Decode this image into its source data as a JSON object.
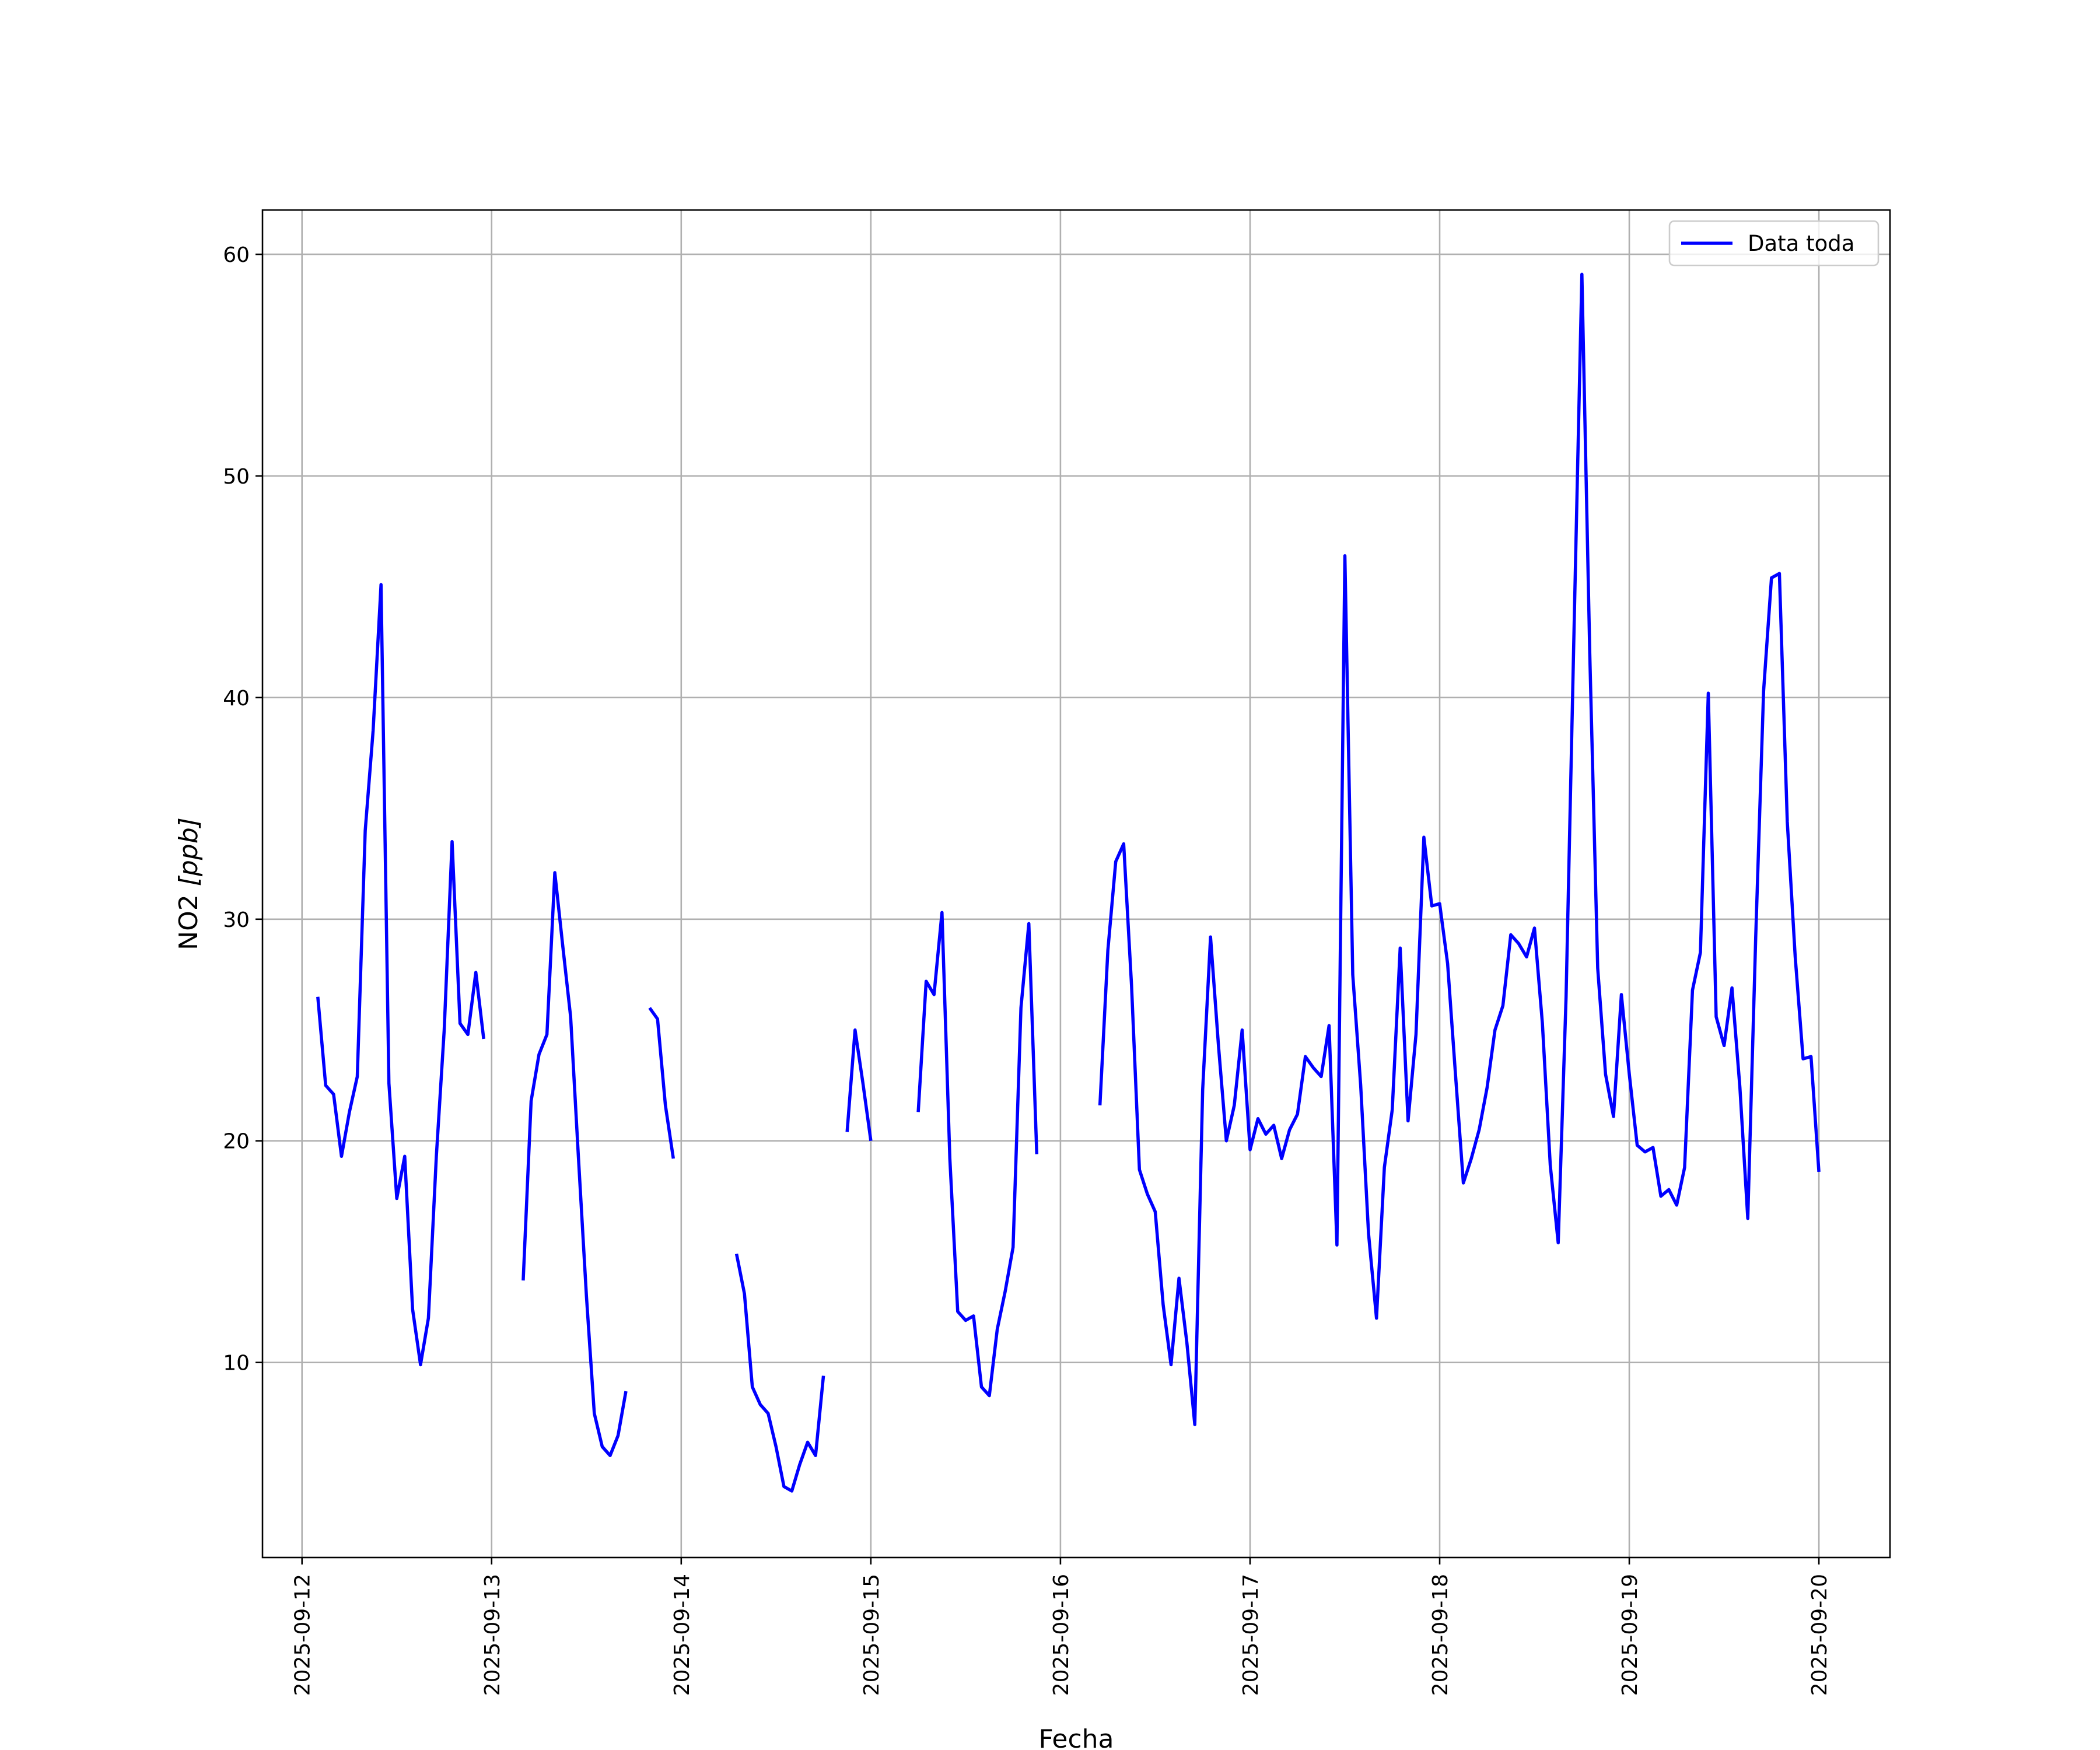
{
  "chart_data": {
    "type": "line",
    "xlabel": "Fecha",
    "ylabel": "NO2 [ppb]",
    "ylabel_main": "NO2 ",
    "ylabel_unit": "[ppb]",
    "x_tick_labels": [
      "2025-09-12",
      "2025-09-13",
      "2025-09-14",
      "2025-09-15",
      "2025-09-16",
      "2025-09-17",
      "2025-09-18",
      "2025-09-19",
      "2025-09-20"
    ],
    "y_ticks": [
      "10",
      "20",
      "30",
      "40",
      "50",
      "60"
    ],
    "xlim": [
      "2025-09-11T19:00",
      "2025-09-20T09:00"
    ],
    "ylim": [
      1.2,
      62.0
    ],
    "grid": true,
    "legend_position": "top-right",
    "series": [
      {
        "name": "Data toda",
        "color": "#0000ff",
        "segments": [
          [
            [
              "2025-09-12T02:00",
              26.5
            ],
            [
              "2025-09-12T03:00",
              22.5
            ],
            [
              "2025-09-12T04:00",
              22.1
            ],
            [
              "2025-09-12T05:00",
              19.3
            ],
            [
              "2025-09-12T06:00",
              21.3
            ],
            [
              "2025-09-12T07:00",
              22.9
            ],
            [
              "2025-09-12T08:00",
              34.0
            ],
            [
              "2025-09-12T09:00",
              38.5
            ],
            [
              "2025-09-12T10:00",
              45.1
            ],
            [
              "2025-09-12T11:00",
              22.6
            ],
            [
              "2025-09-12T12:00",
              17.4
            ],
            [
              "2025-09-12T13:00",
              19.3
            ],
            [
              "2025-09-12T14:00",
              12.4
            ],
            [
              "2025-09-12T15:00",
              9.9
            ],
            [
              "2025-09-12T16:00",
              12.0
            ],
            [
              "2025-09-12T17:00",
              19.3
            ],
            [
              "2025-09-12T18:00",
              25.0
            ],
            [
              "2025-09-12T19:00",
              33.5
            ],
            [
              "2025-09-12T20:00",
              25.3
            ],
            [
              "2025-09-12T21:00",
              24.8
            ],
            [
              "2025-09-12T22:00",
              27.6
            ],
            [
              "2025-09-12T23:00",
              24.6
            ]
          ],
          [
            [
              "2025-09-13T04:00",
              13.7
            ],
            [
              "2025-09-13T05:00",
              21.8
            ],
            [
              "2025-09-13T06:00",
              23.9
            ],
            [
              "2025-09-13T07:00",
              24.8
            ],
            [
              "2025-09-13T08:00",
              32.1
            ],
            [
              "2025-09-13T09:00",
              28.8
            ],
            [
              "2025-09-13T10:00",
              25.6
            ],
            [
              "2025-09-13T11:00",
              19.2
            ],
            [
              "2025-09-13T12:00",
              13.0
            ],
            [
              "2025-09-13T13:00",
              7.7
            ],
            [
              "2025-09-13T14:00",
              6.2
            ],
            [
              "2025-09-13T15:00",
              5.8
            ],
            [
              "2025-09-13T16:00",
              6.7
            ],
            [
              "2025-09-13T17:00",
              8.7
            ]
          ],
          [
            [
              "2025-09-13T20:00",
              26.0
            ],
            [
              "2025-09-13T21:00",
              25.5
            ],
            [
              "2025-09-13T22:00",
              21.6
            ],
            [
              "2025-09-13T23:00",
              19.2
            ]
          ],
          [
            [
              "2025-09-14T07:00",
              14.9
            ],
            [
              "2025-09-14T08:00",
              13.1
            ],
            [
              "2025-09-14T09:00",
              8.9
            ],
            [
              "2025-09-14T10:00",
              8.1
            ],
            [
              "2025-09-14T11:00",
              7.7
            ],
            [
              "2025-09-14T12:00",
              6.2
            ],
            [
              "2025-09-14T13:00",
              4.4
            ],
            [
              "2025-09-14T14:00",
              4.2
            ],
            [
              "2025-09-14T15:00",
              5.4
            ],
            [
              "2025-09-14T16:00",
              6.4
            ],
            [
              "2025-09-14T17:00",
              5.8
            ],
            [
              "2025-09-14T18:00",
              9.4
            ]
          ],
          [
            [
              "2025-09-14T21:00",
              20.4
            ],
            [
              "2025-09-14T22:00",
              25.0
            ],
            [
              "2025-09-14T23:00",
              22.6
            ],
            [
              "2025-09-15T00:00",
              20.0
            ]
          ],
          [
            [
              "2025-09-15T06:00",
              21.3
            ],
            [
              "2025-09-15T07:00",
              27.2
            ],
            [
              "2025-09-15T08:00",
              26.6
            ],
            [
              "2025-09-15T09:00",
              30.3
            ],
            [
              "2025-09-15T10:00",
              19.2
            ],
            [
              "2025-09-15T11:00",
              12.3
            ],
            [
              "2025-09-15T12:00",
              11.9
            ],
            [
              "2025-09-15T13:00",
              12.1
            ],
            [
              "2025-09-15T14:00",
              8.9
            ],
            [
              "2025-09-15T15:00",
              8.5
            ],
            [
              "2025-09-15T16:00",
              11.5
            ],
            [
              "2025-09-15T17:00",
              13.2
            ],
            [
              "2025-09-15T18:00",
              15.2
            ],
            [
              "2025-09-15T19:00",
              26.0
            ],
            [
              "2025-09-15T20:00",
              29.8
            ],
            [
              "2025-09-15T21:00",
              19.4
            ]
          ],
          [
            [
              "2025-09-16T05:00",
              21.6
            ],
            [
              "2025-09-16T06:00",
              28.6
            ],
            [
              "2025-09-16T07:00",
              32.6
            ],
            [
              "2025-09-16T08:00",
              33.4
            ],
            [
              "2025-09-16T09:00",
              27.0
            ],
            [
              "2025-09-16T10:00",
              18.7
            ],
            [
              "2025-09-16T11:00",
              17.6
            ],
            [
              "2025-09-16T12:00",
              16.8
            ],
            [
              "2025-09-16T13:00",
              12.6
            ],
            [
              "2025-09-16T14:00",
              9.9
            ],
            [
              "2025-09-16T15:00",
              13.8
            ],
            [
              "2025-09-16T16:00",
              10.9
            ],
            [
              "2025-09-16T17:00",
              7.2
            ],
            [
              "2025-09-16T18:00",
              22.3
            ],
            [
              "2025-09-16T19:00",
              29.2
            ],
            [
              "2025-09-16T20:00",
              24.3
            ],
            [
              "2025-09-16T21:00",
              20.0
            ],
            [
              "2025-09-16T22:00",
              21.6
            ],
            [
              "2025-09-16T23:00",
              25.0
            ],
            [
              "2025-09-17T00:00",
              19.6
            ],
            [
              "2025-09-17T01:00",
              21.0
            ],
            [
              "2025-09-17T02:00",
              20.3
            ],
            [
              "2025-09-17T03:00",
              20.7
            ],
            [
              "2025-09-17T04:00",
              19.2
            ],
            [
              "2025-09-17T05:00",
              20.5
            ],
            [
              "2025-09-17T06:00",
              21.2
            ],
            [
              "2025-09-17T07:00",
              23.8
            ],
            [
              "2025-09-17T08:00",
              23.3
            ],
            [
              "2025-09-17T09:00",
              22.9
            ],
            [
              "2025-09-17T10:00",
              25.2
            ],
            [
              "2025-09-17T11:00",
              15.3
            ],
            [
              "2025-09-17T12:00",
              46.4
            ],
            [
              "2025-09-17T13:00",
              27.5
            ],
            [
              "2025-09-17T14:00",
              22.5
            ],
            [
              "2025-09-17T15:00",
              15.8
            ],
            [
              "2025-09-17T16:00",
              12.0
            ],
            [
              "2025-09-17T17:00",
              18.8
            ],
            [
              "2025-09-17T18:00",
              21.4
            ],
            [
              "2025-09-17T19:00",
              28.7
            ],
            [
              "2025-09-17T20:00",
              20.9
            ],
            [
              "2025-09-17T21:00",
              24.8
            ],
            [
              "2025-09-17T22:00",
              33.7
            ],
            [
              "2025-09-17T23:00",
              30.6
            ],
            [
              "2025-09-18T00:00",
              30.7
            ],
            [
              "2025-09-18T01:00",
              28.0
            ],
            [
              "2025-09-18T02:00",
              23.0
            ],
            [
              "2025-09-18T03:00",
              18.1
            ],
            [
              "2025-09-18T04:00",
              19.2
            ],
            [
              "2025-09-18T05:00",
              20.5
            ],
            [
              "2025-09-18T06:00",
              22.4
            ],
            [
              "2025-09-18T07:00",
              25.0
            ],
            [
              "2025-09-18T08:00",
              26.1
            ],
            [
              "2025-09-18T09:00",
              29.3
            ],
            [
              "2025-09-18T10:00",
              28.9
            ],
            [
              "2025-09-18T11:00",
              28.3
            ],
            [
              "2025-09-18T12:00",
              29.6
            ],
            [
              "2025-09-18T13:00",
              25.3
            ],
            [
              "2025-09-18T14:00",
              18.9
            ],
            [
              "2025-09-18T15:00",
              15.4
            ],
            [
              "2025-09-18T16:00",
              26.5
            ],
            [
              "2025-09-18T17:00",
              43.0
            ],
            [
              "2025-09-18T18:00",
              59.1
            ],
            [
              "2025-09-18T19:00",
              42.0
            ],
            [
              "2025-09-18T20:00",
              27.8
            ],
            [
              "2025-09-18T21:00",
              23.0
            ],
            [
              "2025-09-18T22:00",
              21.1
            ],
            [
              "2025-09-18T23:00",
              26.6
            ],
            [
              "2025-09-19T00:00",
              23.0
            ],
            [
              "2025-09-19T01:00",
              19.8
            ],
            [
              "2025-09-19T02:00",
              19.5
            ],
            [
              "2025-09-19T03:00",
              19.7
            ],
            [
              "2025-09-19T04:00",
              17.5
            ],
            [
              "2025-09-19T05:00",
              17.8
            ],
            [
              "2025-09-19T06:00",
              17.1
            ],
            [
              "2025-09-19T07:00",
              18.8
            ],
            [
              "2025-09-19T08:00",
              26.8
            ],
            [
              "2025-09-19T09:00",
              28.5
            ],
            [
              "2025-09-19T10:00",
              40.2
            ],
            [
              "2025-09-19T11:00",
              25.6
            ],
            [
              "2025-09-19T12:00",
              24.3
            ],
            [
              "2025-09-19T13:00",
              26.9
            ],
            [
              "2025-09-19T14:00",
              22.4
            ],
            [
              "2025-09-19T15:00",
              16.5
            ],
            [
              "2025-09-19T16:00",
              29.2
            ],
            [
              "2025-09-19T17:00",
              40.3
            ],
            [
              "2025-09-19T18:00",
              45.4
            ],
            [
              "2025-09-19T19:00",
              45.6
            ],
            [
              "2025-09-19T20:00",
              34.4
            ],
            [
              "2025-09-19T21:00",
              28.3
            ],
            [
              "2025-09-19T22:00",
              23.7
            ],
            [
              "2025-09-19T23:00",
              23.8
            ],
            [
              "2025-09-20T00:00",
              18.6
            ]
          ]
        ]
      }
    ]
  }
}
